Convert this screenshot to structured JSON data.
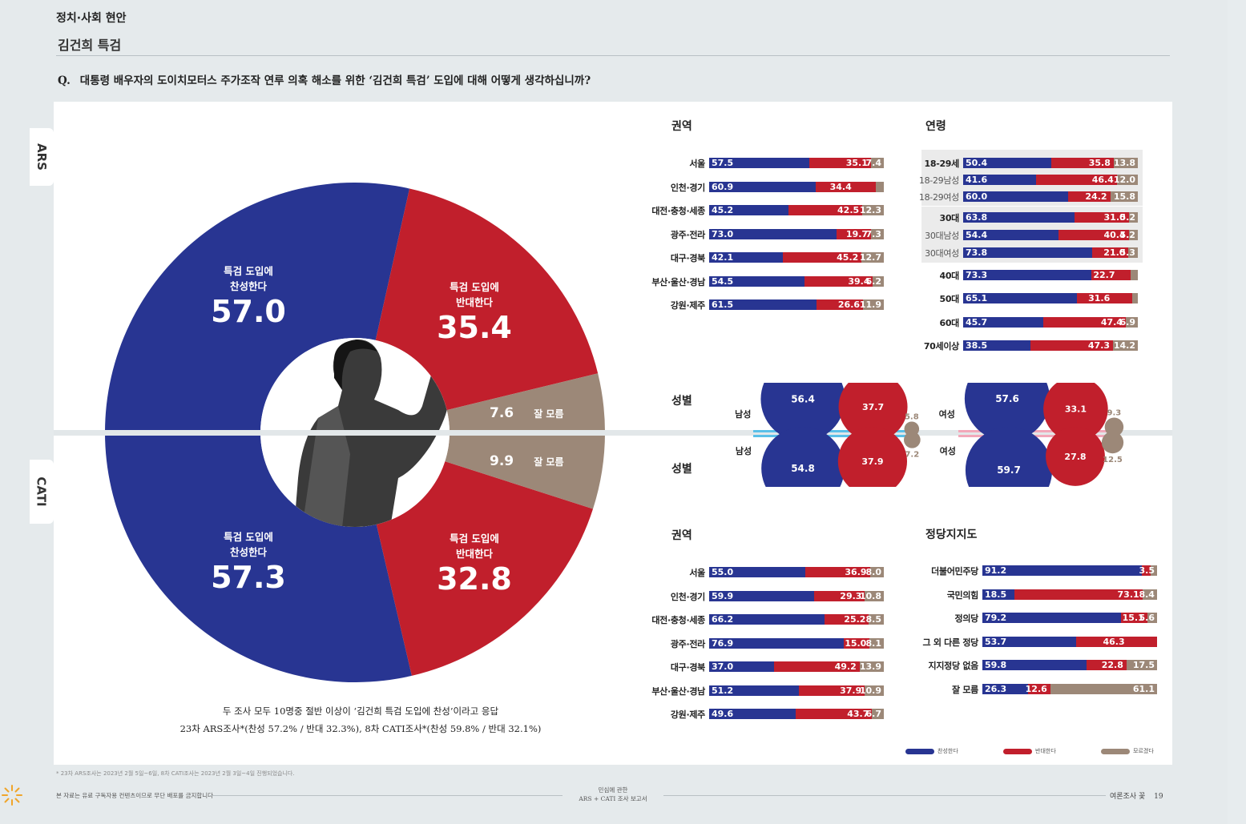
{
  "header": {
    "section": "정치·사회 현안",
    "topic": "김건희 특검",
    "question_marker": "Q.",
    "question": "대통령 배우자의 도이치모터스 주가조작 연루 의혹 해소를 위한 ‘김건희 특검’ 도입에 대해 어떻게 생각하십니까?"
  },
  "tabs": {
    "ars": "ARS",
    "cati": "CATI"
  },
  "colors": {
    "agree": "#283592",
    "disagree": "#c11f2c",
    "unknown": "#9c8878"
  },
  "chart_data": [
    {
      "type": "pie",
      "id": "ars_total",
      "survey": "ARS",
      "categories": [
        "특검 도입에 찬성한다",
        "특검 도입에 반대한다",
        "잘 모름"
      ],
      "values": [
        57.0,
        35.4,
        7.6
      ],
      "labels": {
        "agree_line1": "특검 도입에",
        "agree_line2": "찬성한다",
        "agree_value": "57.0",
        "disagree_line1": "특검 도입에",
        "disagree_line2": "반대한다",
        "disagree_value": "35.4",
        "unknown_value": "7.6",
        "unknown_label": "잘 모름"
      }
    },
    {
      "type": "pie",
      "id": "cati_total",
      "survey": "CATI",
      "categories": [
        "특검 도입에 찬성한다",
        "특검 도입에 반대한다",
        "잘 모름"
      ],
      "values": [
        57.3,
        32.8,
        9.9
      ],
      "labels": {
        "agree_line1": "특검 도입에",
        "agree_line2": "찬성한다",
        "agree_value": "57.3",
        "disagree_line1": "특검 도입에",
        "disagree_line2": "반대한다",
        "disagree_value": "32.8",
        "unknown_value": "9.9",
        "unknown_label": "잘 모름"
      }
    },
    {
      "type": "bar",
      "id": "ars_region",
      "title": "권역",
      "stacked": true,
      "rows": [
        {
          "label": "서울",
          "values": [
            57.5,
            35.1,
            7.4
          ]
        },
        {
          "label": "인천·경기",
          "values": [
            60.9,
            34.4,
            4.7
          ],
          "hide_last": true
        },
        {
          "label": "대전·충청·세종",
          "values": [
            45.2,
            42.5,
            12.3
          ]
        },
        {
          "label": "광주·전라",
          "values": [
            73.0,
            19.7,
            7.3
          ]
        },
        {
          "label": "대구·경북",
          "values": [
            42.1,
            45.2,
            12.7
          ]
        },
        {
          "label": "부산·울산·경남",
          "values": [
            54.5,
            39.4,
            6.2
          ]
        },
        {
          "label": "강원·제주",
          "values": [
            61.5,
            26.6,
            11.9
          ]
        }
      ]
    },
    {
      "type": "bar",
      "id": "ars_age",
      "title": "연령",
      "stacked": true,
      "rows": [
        {
          "label": "18-29세",
          "values": [
            50.4,
            35.8,
            13.8
          ]
        },
        {
          "label": "18-29남성",
          "values": [
            41.6,
            46.4,
            12.0
          ],
          "sub": true
        },
        {
          "label": "18-29여성",
          "values": [
            60.0,
            24.2,
            15.8
          ],
          "sub": true
        },
        {
          "label": "30대",
          "values": [
            63.8,
            31.0,
            5.2
          ]
        },
        {
          "label": "30대남성",
          "values": [
            54.4,
            40.4,
            5.2
          ],
          "sub": true
        },
        {
          "label": "30대여성",
          "values": [
            73.8,
            21.0,
            5.3
          ],
          "sub": true
        },
        {
          "label": "40대",
          "values": [
            73.3,
            22.7,
            4.0
          ],
          "hide_last": true
        },
        {
          "label": "50대",
          "values": [
            65.1,
            31.6,
            3.3
          ],
          "hide_last": true
        },
        {
          "label": "60대",
          "values": [
            45.7,
            47.4,
            6.9
          ]
        },
        {
          "label": "70세이상",
          "values": [
            38.5,
            47.3,
            14.2
          ]
        }
      ]
    },
    {
      "type": "bubble",
      "id": "gender",
      "title_ars": "성별",
      "title_cati": "성별",
      "groups": [
        {
          "label": "남성",
          "survey": "ARS",
          "values": [
            56.4,
            37.7,
            5.8
          ]
        },
        {
          "label": "남성",
          "survey": "CATI",
          "values": [
            54.8,
            37.9,
            7.2
          ]
        },
        {
          "label": "여성",
          "survey": "ARS",
          "values": [
            57.6,
            33.1,
            9.3
          ]
        },
        {
          "label": "여성",
          "survey": "CATI",
          "values": [
            59.7,
            27.8,
            12.5
          ]
        }
      ]
    },
    {
      "type": "bar",
      "id": "cati_region",
      "title": "권역",
      "stacked": true,
      "rows": [
        {
          "label": "서울",
          "values": [
            55.0,
            36.9,
            8.0
          ]
        },
        {
          "label": "인천·경기",
          "values": [
            59.9,
            29.3,
            10.8
          ]
        },
        {
          "label": "대전·충청·세종",
          "values": [
            66.2,
            25.2,
            8.5
          ]
        },
        {
          "label": "광주·전라",
          "values": [
            76.9,
            15.0,
            8.1
          ]
        },
        {
          "label": "대구·경북",
          "values": [
            37.0,
            49.2,
            13.9
          ]
        },
        {
          "label": "부산·울산·경남",
          "values": [
            51.2,
            37.9,
            10.9
          ]
        },
        {
          "label": "강원·제주",
          "values": [
            49.6,
            43.7,
            6.7
          ]
        }
      ]
    },
    {
      "type": "bar",
      "id": "cati_party",
      "title": "정당지지도",
      "stacked": true,
      "rows": [
        {
          "label": "더불어민주당",
          "values": [
            91.2,
            5.3,
            3.5
          ],
          "hide_mid": true
        },
        {
          "label": "국민의힘",
          "values": [
            18.5,
            73.1,
            8.4
          ]
        },
        {
          "label": "정의당",
          "values": [
            79.2,
            15.1,
            5.6
          ]
        },
        {
          "label": "그 외 다른 정당",
          "values": [
            53.7,
            46.3,
            0
          ],
          "hide_last": true
        },
        {
          "label": "지지정당 없음",
          "values": [
            59.8,
            22.8,
            17.5
          ]
        },
        {
          "label": "잘 모름",
          "values": [
            26.3,
            12.6,
            61.1
          ]
        }
      ]
    }
  ],
  "caption": {
    "line1": "두 조사 모두 10명중 절반 이상이 ‘김건희 특검 도입에 찬성’이라고 응답",
    "line2": "23차 ARS조사*(찬성 57.2% / 반대 32.3%), 8차 CATI조사*(찬성 59.8% / 반대 32.1%)"
  },
  "legend": {
    "agree": "찬성한다",
    "disagree": "반대한다",
    "unknown": "모르겠다"
  },
  "footnote": "* 23차 ARS조사는 2023년 2월 5일~6일, 8차 CATI조사는 2023년 2월 3일~4일 진행되었습니다.",
  "footer": {
    "left": "본 자료는 유료 구독자용 컨텐츠이므로 무단 배포를 금지합니다",
    "center_line1": "민심에 관한",
    "center_line2": "ARS + CATI 조사 보고서",
    "brand": "여론조사 꽃",
    "page": "19"
  }
}
